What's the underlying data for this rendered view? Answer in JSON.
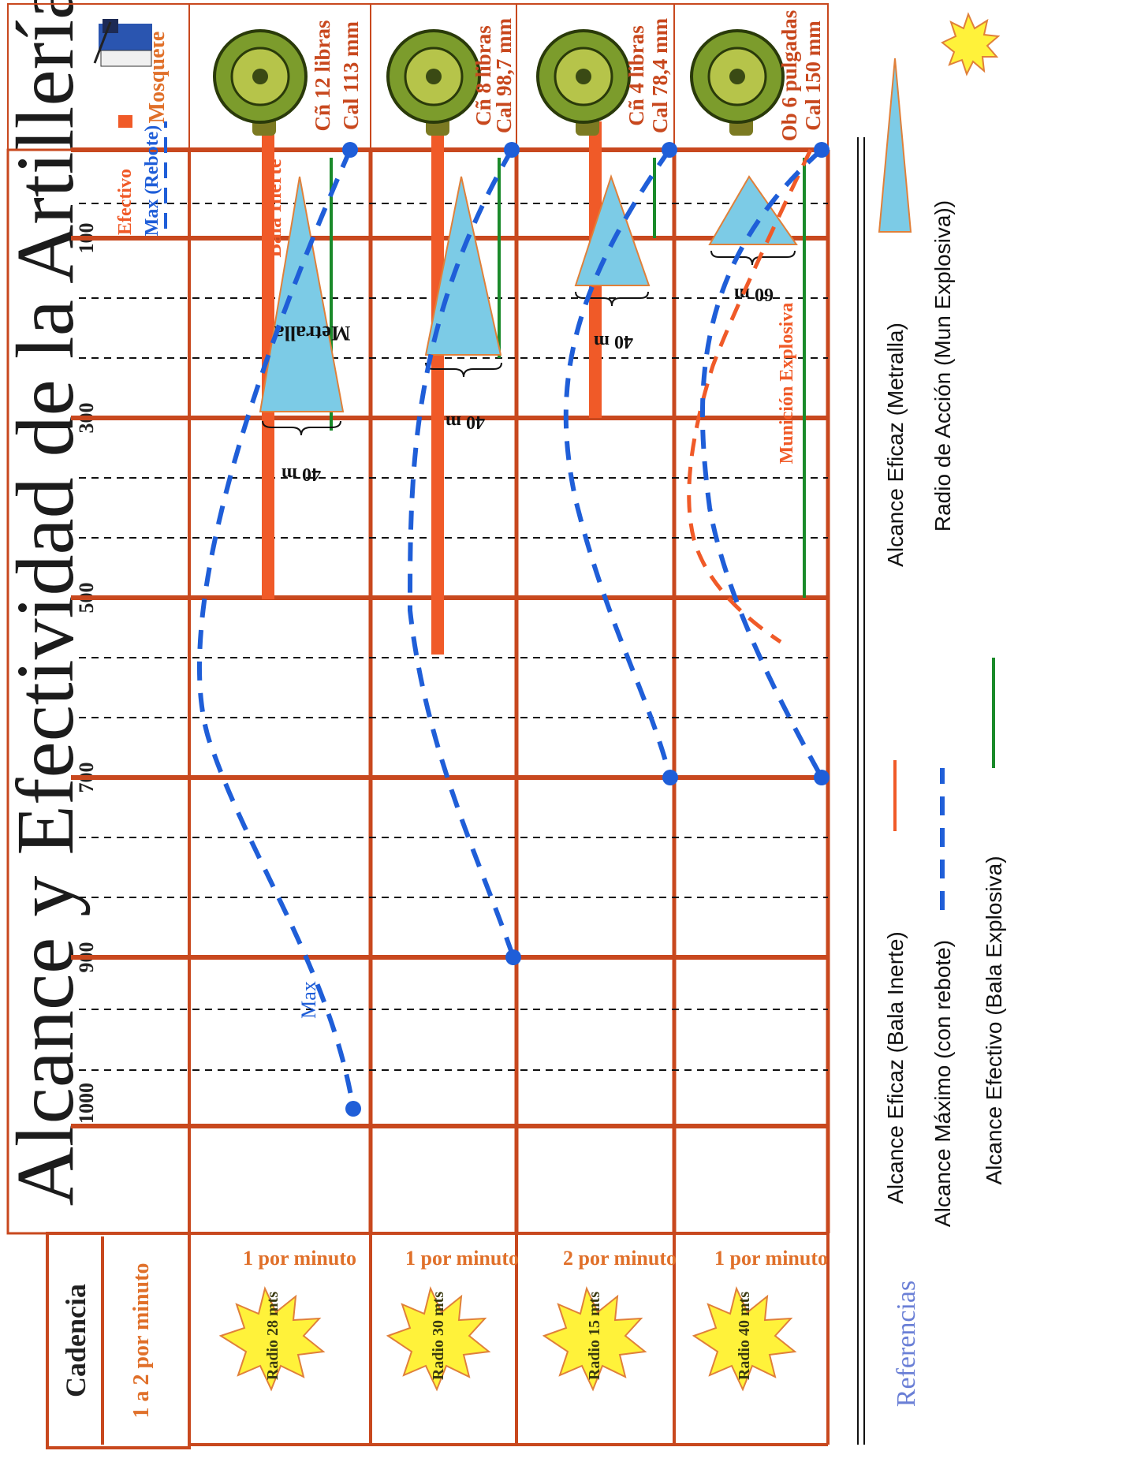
{
  "title": "Alcance y Efectividad de la Artillería",
  "axis": {
    "ticks": [
      "1000",
      "900",
      "700",
      "500",
      "300",
      "100"
    ]
  },
  "header": {
    "cadencia": "Cadencia",
    "referencias": "Referencias"
  },
  "rows": [
    {
      "rate": "1 a 2 por minuto",
      "weapon": "Mosquete",
      "legend_effective": "Efectivo",
      "legend_max": "Max (Rebote)",
      "max_label": "Max"
    },
    {
      "rate": "1 por minuto",
      "burst": "Radio 28 mts",
      "name1": "Cñ 12 libras",
      "name2": "Cal 113 mm",
      "inert_label": "Bala Inerte",
      "grape_label": "Metralla",
      "spread": "40 m"
    },
    {
      "rate": "1 por minuto",
      "burst": "Radio 30 mts",
      "name1": "Cñ 8 libras",
      "name2": "Cal 98,7 mm",
      "spread": "40 m"
    },
    {
      "rate": "2 por minuto",
      "burst": "Radio 15 mts",
      "name1": "Cñ 4 libras",
      "name2": "Cal 78,4 mm",
      "spread": "40 m"
    },
    {
      "rate": "1 por minuto",
      "burst": "Radio 40 mts",
      "name1": "Ob 6 pulgadas",
      "name2": "Cal 150 mm",
      "explosive_label": "Munición Explosiva",
      "spread": "60 m"
    }
  ],
  "legend": {
    "inert": "Alcance Eficaz (Bala Inerte)",
    "max": "Alcance Máximo (con rebote)",
    "effective": "Alcance Efectivo (Bala Explosiva)",
    "grape": "Alcance Eficaz (Metralla)",
    "blast": "Radio de Acción (Mun Explosiva))"
  },
  "colors": {
    "grid": "#c8481e",
    "orange": "#f05a28",
    "blue": "#1f5ed8",
    "green": "#1a8a2a",
    "cyan": "#7ccbe6",
    "rate_text": "#e0702a",
    "ref_text": "#6a7fd6"
  }
}
